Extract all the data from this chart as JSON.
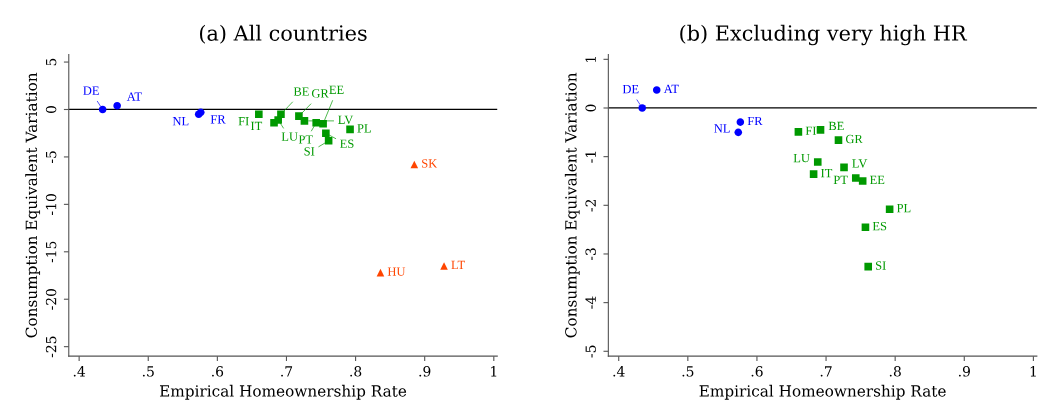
{
  "chart_data": [
    {
      "type": "scatter",
      "title": "(a) All countries",
      "xlabel": "Empirical Homeownership Rate",
      "ylabel": "Consumption Equivalent Variation",
      "xlim": [
        0.385,
        1.005
      ],
      "ylim": [
        -26,
        5.8
      ],
      "xticks": [
        {
          "value": 0.4,
          "label": ".4"
        },
        {
          "value": 0.5,
          "label": ".5"
        },
        {
          "value": 0.6,
          "label": ".6"
        },
        {
          "value": 0.7,
          "label": ".7"
        },
        {
          "value": 0.8,
          "label": ".8"
        },
        {
          "value": 0.9,
          "label": ".9"
        },
        {
          "value": 1,
          "label": "1"
        }
      ],
      "yticks": [
        5,
        0,
        -5,
        -10,
        -15,
        -20,
        -25
      ],
      "grid": false,
      "legend": false,
      "ref_lines": [
        {
          "axis": "y",
          "value": 0,
          "color": "#000000"
        }
      ],
      "series": [
        {
          "color": "#0000ff",
          "marker": "circle",
          "x": [
            0.455,
            0.434,
            0.576,
            0.573
          ],
          "values": [
            0.4,
            0,
            -0.3,
            -0.5
          ],
          "value_labels": [
            "AT",
            "DE",
            "FR",
            "NL"
          ]
        },
        {
          "color": "#009900",
          "marker": "square",
          "x": [
            0.66,
            0.692,
            0.718,
            0.688,
            0.726,
            0.682,
            0.743,
            0.753,
            0.792,
            0.757,
            0.761
          ],
          "values": [
            -0.5,
            -0.5,
            -0.7,
            -1.1,
            -1.2,
            -1.4,
            -1.4,
            -1.5,
            -2.1,
            -2.5,
            -3.3
          ],
          "value_labels": [
            "FI",
            "BE",
            "GR",
            "LU",
            "LV",
            "IT",
            "PT",
            "EE",
            "PL",
            "ES",
            "SI"
          ]
        },
        {
          "color": "#ff4500",
          "marker": "triangle",
          "x": [
            0.885,
            0.836,
            0.928
          ],
          "values": [
            -5.8,
            -17.2,
            -16.5
          ],
          "value_labels": [
            "SK",
            "HU",
            "LT"
          ]
        }
      ]
    },
    {
      "type": "scatter",
      "title": "(b) Excluding very high HR",
      "xlabel": "Empirical Homeownership Rate",
      "ylabel": "Consumption Equivalent Variation",
      "xlim": [
        0.385,
        1.005
      ],
      "ylim": [
        -5.1,
        1.1
      ],
      "xticks": [
        {
          "value": 0.4,
          "label": ".4"
        },
        {
          "value": 0.5,
          "label": ".5"
        },
        {
          "value": 0.6,
          "label": ".6"
        },
        {
          "value": 0.7,
          "label": ".7"
        },
        {
          "value": 0.8,
          "label": ".8"
        },
        {
          "value": 0.9,
          "label": ".9"
        },
        {
          "value": 1,
          "label": "1"
        }
      ],
      "yticks": [
        1,
        0,
        -1,
        -2,
        -3,
        -4,
        -5
      ],
      "grid": false,
      "legend": false,
      "ref_lines": [
        {
          "axis": "y",
          "value": 0,
          "color": "#000000"
        }
      ],
      "series": [
        {
          "color": "#0000ff",
          "marker": "circle",
          "x": [
            0.455,
            0.434,
            0.576,
            0.573
          ],
          "values": [
            0.37,
            0,
            -0.29,
            -0.5
          ],
          "value_labels": [
            "AT",
            "DE",
            "FR",
            "NL"
          ]
        },
        {
          "color": "#009900",
          "marker": "square",
          "x": [
            0.66,
            0.692,
            0.718,
            0.688,
            0.726,
            0.682,
            0.743,
            0.753,
            0.792,
            0.757,
            0.761
          ],
          "values": [
            -0.49,
            -0.45,
            -0.66,
            -1.11,
            -1.22,
            -1.36,
            -1.44,
            -1.5,
            -2.08,
            -2.45,
            -3.26
          ],
          "value_labels": [
            "FI",
            "BE",
            "GR",
            "LU",
            "LV",
            "IT",
            "PT",
            "EE",
            "PL",
            "ES",
            "SI"
          ]
        }
      ]
    }
  ]
}
